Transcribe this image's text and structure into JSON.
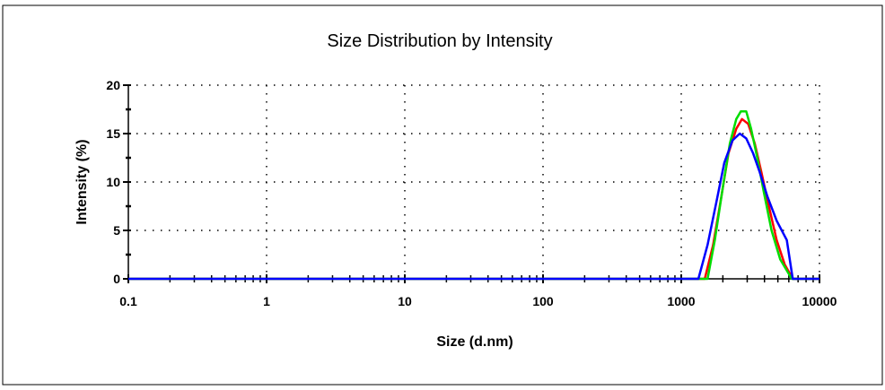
{
  "chart_data": {
    "type": "line",
    "title": "Size Distribution by Intensity",
    "xlabel": "Size (d.nm)",
    "ylabel": "Intensity (%)",
    "xscale": "log",
    "xlim": [
      0.1,
      10000
    ],
    "ylim": [
      0,
      20
    ],
    "x_tick_labels": [
      "0.1",
      "1",
      "10",
      "100",
      "1000",
      "10000"
    ],
    "y_tick_labels": [
      "0",
      "5",
      "10",
      "15",
      "20"
    ],
    "grid": "dotted",
    "legend": "none",
    "series": [
      {
        "color": "#ff0000",
        "x": [
          1480,
          1700,
          1950,
          2200,
          2500,
          2750,
          3050,
          3400,
          3800,
          4300,
          4900,
          5600,
          6400
        ],
        "y": [
          0,
          3.5,
          8.5,
          13,
          15.5,
          16.5,
          16,
          14,
          11,
          7.5,
          4,
          1.5,
          0
        ]
      },
      {
        "color": "#00dd00",
        "x": [
          1550,
          1750,
          2000,
          2250,
          2500,
          2700,
          2950,
          3200,
          3550,
          3950,
          4500,
          5200,
          6300
        ],
        "y": [
          0,
          4,
          9.5,
          14,
          16.5,
          17.3,
          17.3,
          15.5,
          12.5,
          9,
          5,
          2,
          0
        ]
      },
      {
        "color": "#0000ff",
        "x": [
          1330,
          1550,
          1800,
          2050,
          2350,
          2650,
          2950,
          3300,
          3700,
          4200,
          4900,
          5800,
          6400
        ],
        "y": [
          0,
          3.5,
          8,
          12,
          14.3,
          15,
          14.5,
          13,
          11,
          8.5,
          6,
          4,
          0
        ]
      }
    ]
  }
}
